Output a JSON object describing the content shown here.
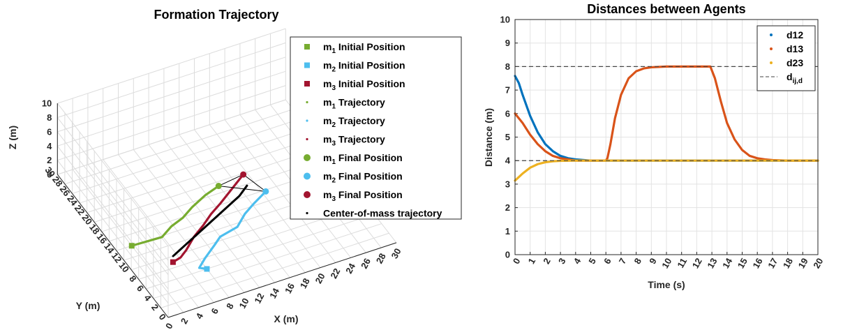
{
  "chart_data": [
    {
      "type": "line",
      "projection": "3d",
      "title": "Formation Trajectory",
      "xlabel": "X (m)",
      "ylabel": "Y (m)",
      "zlabel": "Z (m)",
      "xlim": [
        0,
        30
      ],
      "ylim": [
        0,
        30
      ],
      "zlim": [
        0,
        10
      ],
      "x_ticks": [
        "0",
        "2",
        "4",
        "6",
        "8",
        "10",
        "12",
        "14",
        "16",
        "18",
        "20",
        "22",
        "24",
        "26",
        "28",
        "30"
      ],
      "y_ticks": [
        "0",
        "2",
        "4",
        "6",
        "8",
        "10",
        "12",
        "14",
        "16",
        "18",
        "20",
        "22",
        "24",
        "26",
        "28",
        "30"
      ],
      "z_ticks": [
        "0",
        "2",
        "4",
        "6",
        "8",
        "10"
      ],
      "grid": true,
      "legend_position": "right",
      "legend": [
        {
          "base": "m",
          "sub": "1",
          "text": " Initial Position",
          "marker": "square",
          "color": "#77AC30"
        },
        {
          "base": "m",
          "sub": "2",
          "text": " Initial Position",
          "marker": "square",
          "color": "#4DBEEE"
        },
        {
          "base": "m",
          "sub": "3",
          "text": " Initial Position",
          "marker": "square",
          "color": "#A2142F"
        },
        {
          "base": "m",
          "sub": "1",
          "text": " Trajectory",
          "marker": "dot",
          "color": "#77AC30"
        },
        {
          "base": "m",
          "sub": "2",
          "text": " Trajectory",
          "marker": "dot",
          "color": "#4DBEEE"
        },
        {
          "base": "m",
          "sub": "3",
          "text": " Trajectory",
          "marker": "dot",
          "color": "#A2142F"
        },
        {
          "base": "m",
          "sub": "1",
          "text": " Final Position",
          "marker": "circle",
          "color": "#77AC30"
        },
        {
          "base": "m",
          "sub": "2",
          "text": " Final Position",
          "marker": "circle",
          "color": "#4DBEEE"
        },
        {
          "base": "m",
          "sub": "3",
          "text": " Final Position",
          "marker": "circle",
          "color": "#A2142F"
        },
        {
          "base": "",
          "sub": "",
          "text": "Center-of-mass trajectory",
          "marker": "dot",
          "color": "#000000"
        }
      ],
      "series": [
        {
          "color": "#77AC30",
          "points": [
            [
              2,
              14,
              0
            ],
            [
              4.5,
              13.5,
              0.3
            ],
            [
              5,
              12,
              1.5
            ],
            [
              6,
              11.5,
              3
            ],
            [
              7,
              10.5,
              4.5
            ],
            [
              8,
              10,
              6
            ],
            [
              9.5,
              9.5,
              7.5
            ],
            [
              11,
              9,
              8.6
            ]
          ]
        },
        {
          "color": "#4DBEEE",
          "points": [
            [
              8,
              6,
              0
            ],
            [
              7,
              6,
              0.5
            ],
            [
              7.5,
              5.5,
              2
            ],
            [
              9,
              6,
              3
            ],
            [
              10,
              6.5,
              3.5
            ],
            [
              12,
              6,
              4.5
            ],
            [
              13,
              6,
              6
            ],
            [
              14,
              5.5,
              7.5
            ],
            [
              15.5,
              5.5,
              8.6
            ]
          ]
        },
        {
          "color": "#A2142F",
          "points": [
            [
              5,
              9,
              0
            ],
            [
              6,
              9,
              0.3
            ],
            [
              6.5,
              8.5,
              1.5
            ],
            [
              7.5,
              8.5,
              3
            ],
            [
              9,
              9,
              3.8
            ],
            [
              10,
              9,
              5
            ],
            [
              11,
              8.5,
              6.5
            ],
            [
              12.5,
              8.5,
              8
            ],
            [
              14,
              8.5,
              9.5
            ]
          ]
        },
        {
          "color": "#000000",
          "points": [
            [
              5.5,
              10,
              0
            ],
            [
              7,
              9.5,
              1.5
            ],
            [
              8.5,
              9,
              3
            ],
            [
              10,
              8.5,
              4.5
            ],
            [
              11.5,
              8,
              6
            ],
            [
              13,
              7.5,
              7.5
            ],
            [
              14,
              7.5,
              8.6
            ]
          ]
        }
      ],
      "initial_positions": [
        {
          "color": "#77AC30",
          "point": [
            2,
            14,
            0
          ]
        },
        {
          "color": "#4DBEEE",
          "point": [
            8,
            6,
            0
          ]
        },
        {
          "color": "#A2142F",
          "point": [
            5,
            9,
            0
          ]
        }
      ],
      "final_positions": [
        {
          "color": "#77AC30",
          "point": [
            11,
            9,
            8.6
          ]
        },
        {
          "color": "#4DBEEE",
          "point": [
            15.5,
            5.5,
            8.6
          ]
        },
        {
          "color": "#A2142F",
          "point": [
            14,
            8.5,
            9.5
          ]
        }
      ]
    },
    {
      "type": "line",
      "title": "Distances between Agents",
      "xlabel": "Time (s)",
      "ylabel": "Distance (m)",
      "xlim": [
        0,
        20
      ],
      "ylim": [
        0,
        10
      ],
      "x_ticks": [
        "0",
        "1",
        "2",
        "3",
        "4",
        "5",
        "6",
        "7",
        "8",
        "9",
        "10",
        "11",
        "12",
        "13",
        "14",
        "15",
        "16",
        "17",
        "18",
        "19",
        "20"
      ],
      "y_ticks": [
        "0",
        "1",
        "2",
        "3",
        "4",
        "5",
        "6",
        "7",
        "8",
        "9",
        "10"
      ],
      "grid": true,
      "legend_position": "top-right",
      "legend": [
        {
          "base": "d12",
          "sub": "",
          "marker": "dot",
          "color": "#0072BD"
        },
        {
          "base": "d13",
          "sub": "",
          "marker": "dot",
          "color": "#D95319"
        },
        {
          "base": "d23",
          "sub": "",
          "marker": "dot",
          "color": "#EDB120"
        },
        {
          "base": "d",
          "sub": "ij,d",
          "marker": "dash",
          "color": "#404040"
        }
      ],
      "series": [
        {
          "name": "d12",
          "color": "#0072BD",
          "x": [
            0,
            0.25,
            0.5,
            1,
            1.5,
            2,
            2.5,
            3,
            3.5,
            4,
            5,
            6,
            8,
            10,
            12,
            14,
            16,
            18,
            20
          ],
          "y": [
            7.6,
            7.3,
            6.8,
            5.9,
            5.2,
            4.7,
            4.4,
            4.2,
            4.1,
            4.05,
            4,
            4,
            4,
            4,
            4,
            4,
            4,
            4,
            4
          ]
        },
        {
          "name": "d13",
          "color": "#D95319",
          "x": [
            0,
            0.5,
            1,
            1.5,
            2,
            2.5,
            3,
            3.5,
            4,
            5,
            6,
            6.1,
            6.3,
            6.6,
            7,
            7.5,
            8,
            8.5,
            9,
            10,
            11,
            12,
            12.9,
            13.2,
            13.6,
            14,
            14.5,
            15,
            15.5,
            16,
            16.5,
            17,
            18,
            20
          ],
          "y": [
            6,
            5.6,
            5.1,
            4.7,
            4.4,
            4.2,
            4.1,
            4.05,
            4,
            4,
            4,
            4.1,
            4.7,
            5.8,
            6.8,
            7.5,
            7.8,
            7.92,
            7.97,
            8,
            8,
            8,
            8,
            7.5,
            6.5,
            5.6,
            4.9,
            4.45,
            4.2,
            4.1,
            4.05,
            4.02,
            4,
            4
          ]
        },
        {
          "name": "d23",
          "color": "#EDB120",
          "x": [
            0,
            0.5,
            1,
            1.5,
            2,
            2.5,
            3,
            4,
            6,
            8,
            10,
            12,
            14,
            16,
            18,
            20
          ],
          "y": [
            3.15,
            3.45,
            3.7,
            3.85,
            3.93,
            3.97,
            3.99,
            4,
            4,
            4,
            4,
            4,
            4,
            4,
            4,
            4
          ]
        }
      ],
      "reference_lines": [
        {
          "y": 8,
          "style": "dashed"
        },
        {
          "y": 4,
          "style": "dashed"
        }
      ]
    }
  ]
}
